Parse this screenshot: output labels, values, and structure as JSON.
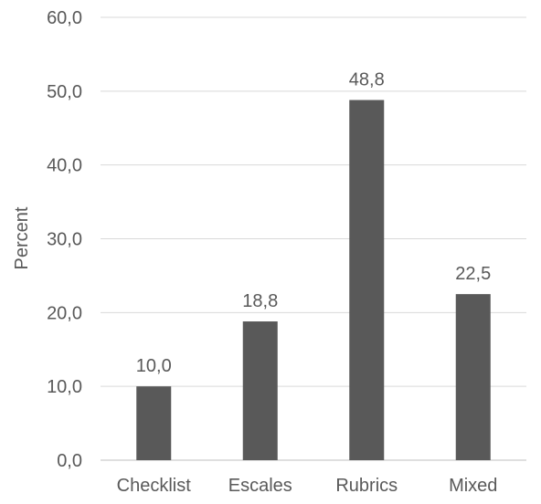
{
  "chart_data": {
    "type": "bar",
    "title": "",
    "xlabel": "",
    "ylabel": "Percent",
    "categories": [
      "Checklist",
      "Escales",
      "Rubrics",
      "Mixed"
    ],
    "values": [
      10.0,
      18.8,
      48.8,
      22.5
    ],
    "value_labels": [
      "10,0",
      "18,8",
      "48,8",
      "22,5"
    ],
    "y_ticks": [
      0,
      10,
      20,
      30,
      40,
      50,
      60
    ],
    "y_tick_labels": [
      "0,0",
      "10,0",
      "20,0",
      "30,0",
      "40,0",
      "50,0",
      "60,0"
    ],
    "ylim": [
      0,
      60
    ],
    "grid": true,
    "legend": "none",
    "colors": {
      "bar": "#595959",
      "grid": "#d9d9d9",
      "text": "#595959",
      "axis": "#bfbfbf"
    }
  }
}
